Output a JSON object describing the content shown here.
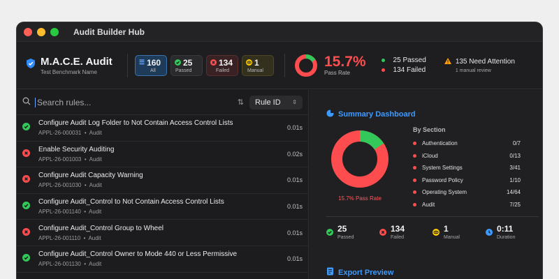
{
  "window": {
    "title": "Audit Builder Hub"
  },
  "header": {
    "name": "M.A.C.E. Audit",
    "subtitle": "Test Benchmark Name",
    "stats": [
      {
        "count": "160",
        "label": "All"
      },
      {
        "count": "25",
        "label": "Passed"
      },
      {
        "count": "134",
        "label": "Failed"
      },
      {
        "count": "1",
        "label": "Manual"
      }
    ],
    "pass_rate": "15.7%",
    "pass_rate_label": "Pass Rate",
    "pass_fraction": 0.157,
    "passed_text": "25 Passed",
    "failed_text": "134 Failed",
    "attention_text": "135 Need Attention",
    "manual_review_text": "1 manual review"
  },
  "search": {
    "placeholder": "Search rules...",
    "sort_value": "Rule ID",
    "sort_icon": "sort-arrows-icon"
  },
  "rules": [
    {
      "status": "pass",
      "title": "Configure Audit Log Folder to Not Contain Access Control Lists",
      "id": "APPL-26-000031",
      "category": "Audit",
      "time": "0.01s"
    },
    {
      "status": "fail",
      "title": "Enable Security Auditing",
      "id": "APPL-26-001003",
      "category": "Audit",
      "time": "0.02s"
    },
    {
      "status": "fail",
      "title": "Configure Audit Capacity Warning",
      "id": "APPL-26-001030",
      "category": "Audit",
      "time": "0.01s"
    },
    {
      "status": "pass",
      "title": "Configure Audit_Control to Not Contain Access Control Lists",
      "id": "APPL-26-001140",
      "category": "Audit",
      "time": "0.01s"
    },
    {
      "status": "fail",
      "title": "Configure Audit_Control Group to Wheel",
      "id": "APPL-26-001110",
      "category": "Audit",
      "time": "0.01s"
    },
    {
      "status": "pass",
      "title": "Configure Audit_Control Owner to Mode 440 or Less Permissive",
      "id": "APPL-26-001130",
      "category": "Audit",
      "time": "0.01s"
    }
  ],
  "dashboard": {
    "title": "Summary Dashboard",
    "donut_caption": "15.7% Pass Rate",
    "by_section_title": "By Section",
    "sections": [
      {
        "name": "Authentication",
        "value": "0/7"
      },
      {
        "name": "iCloud",
        "value": "0/13"
      },
      {
        "name": "System Settings",
        "value": "3/41"
      },
      {
        "name": "Password Policy",
        "value": "1/10"
      },
      {
        "name": "Operating System",
        "value": "14/64"
      },
      {
        "name": "Audit",
        "value": "7/25"
      }
    ],
    "totals": [
      {
        "value": "25",
        "label": "Passed"
      },
      {
        "value": "134",
        "label": "Failed"
      },
      {
        "value": "1",
        "label": "Manual"
      },
      {
        "value": "0:11",
        "label": "Duration"
      }
    ]
  },
  "export": {
    "title": "Export Preview"
  },
  "colors": {
    "pass": "#34c759",
    "fail": "#ff4d4f",
    "manual": "#ffcc00",
    "accent": "#3d9bff",
    "warning": "#ff9f0a"
  }
}
